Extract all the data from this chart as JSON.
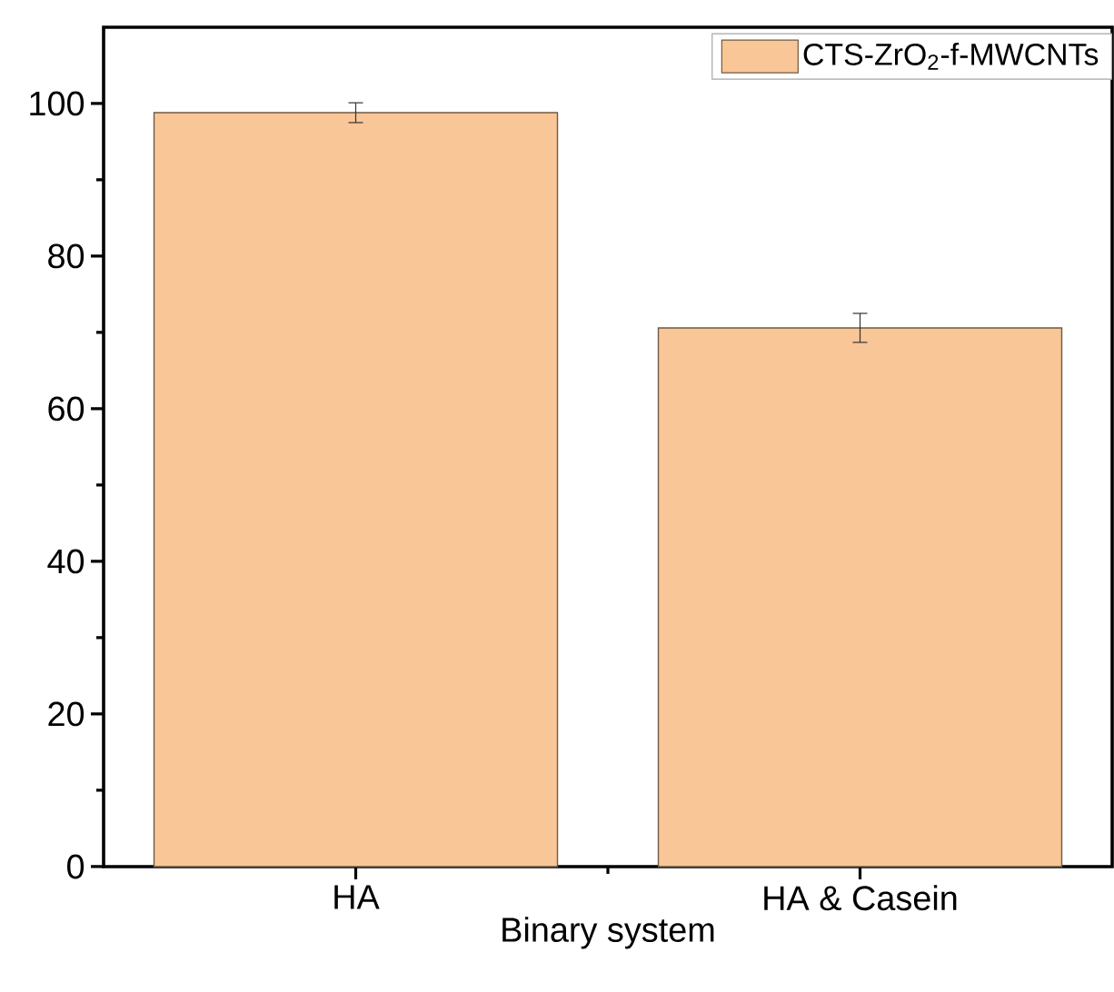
{
  "chart_data": {
    "type": "bar",
    "xlabel": "Binary system",
    "categories": [
      "HA",
      "HA & Casein"
    ],
    "series": [
      {
        "name": "CTS-ZrO$_{2}$-f-MWCNTs",
        "color": "#f9c697",
        "values": [
          98.8,
          70.6
        ],
        "errors": [
          1.3,
          1.9
        ]
      }
    ],
    "ylim": [
      0,
      110
    ],
    "yticks": [
      0,
      20,
      40,
      60,
      80,
      100
    ],
    "legend": "top right",
    "grid": false
  }
}
